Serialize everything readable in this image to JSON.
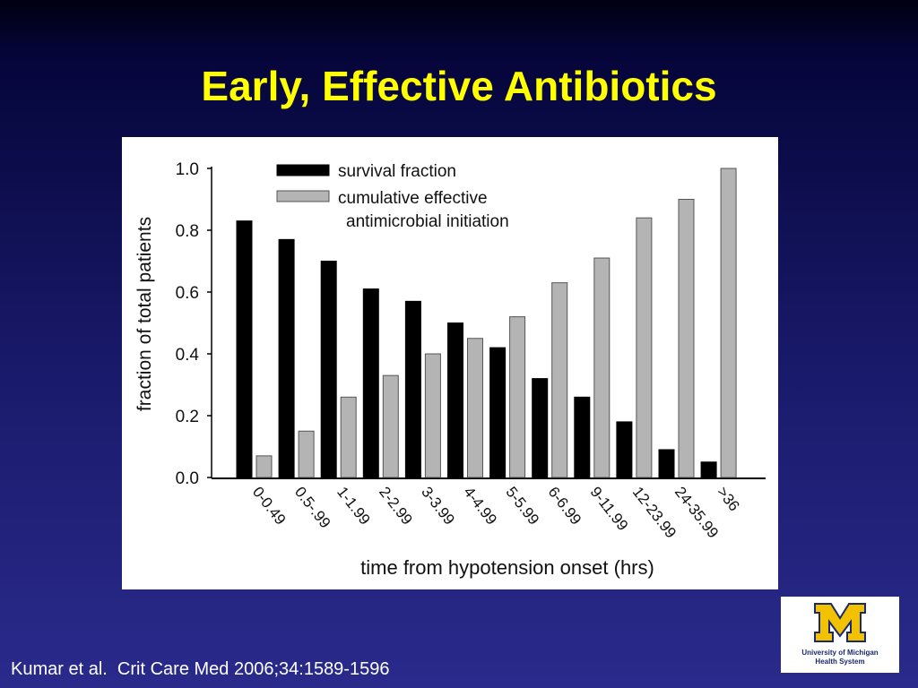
{
  "slide": {
    "title": "Early, Effective Antibiotics",
    "citation": "Kumar et al.  Crit Care Med 2006;34:1589-1596"
  },
  "logo": {
    "letter": "M",
    "line1": "University of Michigan",
    "line2": "Health System",
    "colors": {
      "maize": "#f2c200",
      "blue": "#1a2a6c"
    }
  },
  "chart_data": {
    "type": "bar",
    "xlabel": "time from hypotension onset (hrs)",
    "ylabel": "fraction of total patients",
    "ylim": [
      0,
      1.0
    ],
    "yticks": [
      "0.0",
      "0.2",
      "0.4",
      "0.6",
      "0.8",
      "1.0"
    ],
    "legend_position": "top-center",
    "grid": false,
    "categories": [
      "0-0.49",
      "0.5-.99",
      "1-1.99",
      "2-2.99",
      "3-3.99",
      "4-4.99",
      "5-5.99",
      "6-6.99",
      "9-11.99",
      "12-23.99",
      "24-35.99",
      ">36"
    ],
    "series": [
      {
        "name": "survival fraction",
        "color": "#000000",
        "values": [
          0.83,
          0.77,
          0.7,
          0.61,
          0.57,
          0.5,
          0.42,
          0.32,
          0.26,
          0.18,
          0.09,
          0.05
        ]
      },
      {
        "name": "cumulative effective",
        "name_line2": "antimicrobial initiation",
        "color": "#b4b4b4",
        "values": [
          0.07,
          0.15,
          0.26,
          0.33,
          0.4,
          0.45,
          0.52,
          0.63,
          0.71,
          0.84,
          0.9,
          1.0
        ]
      }
    ]
  }
}
